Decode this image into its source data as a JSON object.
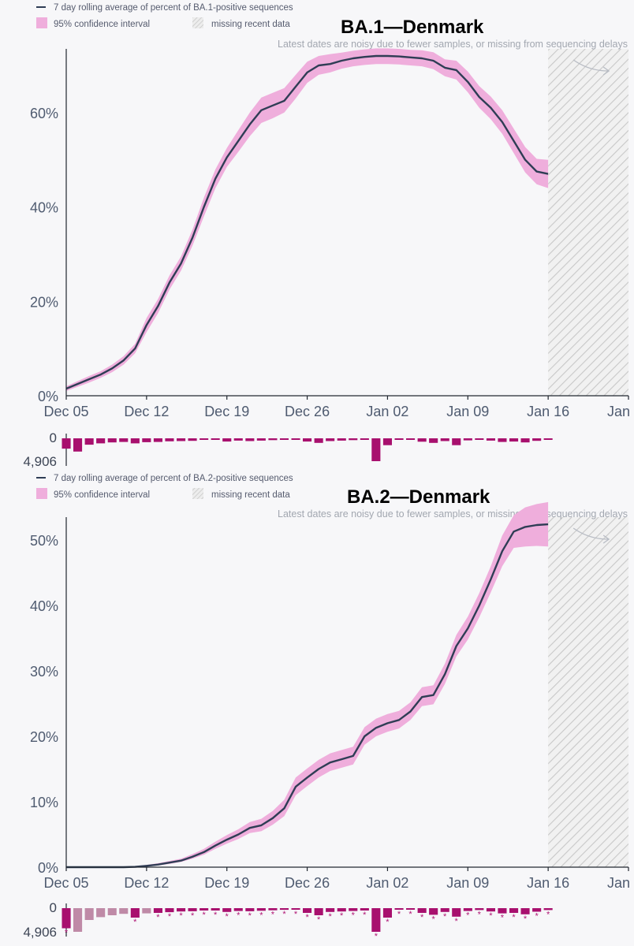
{
  "colors": {
    "line": "#2f3d55",
    "band": "#efaedc",
    "bar": "#a8106e",
    "bar_light": "#bf8aa7",
    "hatch": "#c8c8c8",
    "axis": "#222831",
    "text": "#4f5b70"
  },
  "chart_data": [
    {
      "type": "line",
      "title": "BA.1—Denmark",
      "legend": {
        "line_label": "7 day rolling average of percent of BA.1-positive sequences",
        "band_label": "95% confidence interval",
        "missing_label": "missing recent data",
        "placement": "top-left"
      },
      "note": "Latest dates are noisy due to fewer samples, or missing from sequencing delays",
      "x_ticks": [
        "Dec 05",
        "Dec 12",
        "Dec 19",
        "Dec 26",
        "Jan 02",
        "Jan 09",
        "Jan 16",
        "Jan"
      ],
      "x_range_days": [
        0,
        49
      ],
      "y_ticks": [
        "0%",
        "20%",
        "40%",
        "60%"
      ],
      "y_tick_values": [
        0,
        20,
        40,
        60
      ],
      "ylim": [
        0,
        73.5
      ],
      "missing_start_day": 42,
      "series": [
        {
          "name": "7 day rolling average of percent of BA.1-positive sequences",
          "x": [
            0,
            1,
            2,
            3,
            4,
            5,
            6,
            7,
            8,
            9,
            10,
            11,
            12,
            13,
            14,
            15,
            16,
            17,
            18,
            19,
            20,
            21,
            22,
            23,
            24,
            25,
            26,
            27,
            28,
            29,
            30,
            31,
            32,
            33,
            34,
            35,
            36,
            37,
            38,
            39,
            40,
            41,
            42
          ],
          "values": [
            1.5,
            2.5,
            3.5,
            4.5,
            5.8,
            7.5,
            10,
            15,
            19,
            24,
            28,
            33.5,
            40,
            46,
            50.5,
            54,
            57.5,
            60.5,
            61.5,
            62.5,
            65.5,
            68.5,
            70,
            70.3,
            71,
            71.5,
            71.8,
            72,
            72,
            71.9,
            71.7,
            71.5,
            71,
            69.5,
            69,
            66.5,
            63.3,
            61,
            58,
            54,
            50,
            47.5,
            47
          ],
          "ci_lower": [
            1.0,
            1.9,
            2.8,
            3.8,
            5.0,
            6.6,
            9,
            13.5,
            17.5,
            22.5,
            26.5,
            31.8,
            38,
            44,
            48.5,
            51.7,
            55,
            57.8,
            58.8,
            60,
            63,
            66.3,
            68,
            68.5,
            69.3,
            69.8,
            70.1,
            70.3,
            70.3,
            70.2,
            70,
            69.8,
            69.2,
            67.7,
            67,
            64.3,
            61,
            58.6,
            55.5,
            51.4,
            47.3,
            44.8,
            44
          ]
        }
      ],
      "ci_upper": [
        2.0,
        3.1,
        4.2,
        5.2,
        6.6,
        8.4,
        11,
        16.5,
        20.5,
        25.5,
        29.5,
        35.2,
        42,
        48,
        52.5,
        56.3,
        60,
        63.2,
        64.2,
        65.2,
        68,
        70.8,
        72,
        72.4,
        72.7,
        73.1,
        73.4,
        73.6,
        73.6,
        73.5,
        73.3,
        73.2,
        72.8,
        71.3,
        71,
        68.7,
        65.6,
        63.4,
        60.5,
        56.6,
        52.7,
        50.2,
        50
      ],
      "sample_counts": {
        "max_label": "4,906",
        "min_label": "0",
        "relative_values": [
          0.45,
          0.58,
          0.28,
          0.22,
          0.18,
          0.16,
          0.22,
          0.17,
          0.16,
          0.13,
          0.12,
          0.11,
          0.07,
          0.07,
          0.14,
          0.1,
          0.12,
          0.1,
          0.08,
          0.06,
          0.05,
          0.14,
          0.2,
          0.12,
          0.1,
          0.08,
          0.07,
          1.0,
          0.3,
          0.04,
          0.04,
          0.15,
          0.2,
          0.12,
          0.3,
          0.09,
          0.06,
          0.1,
          0.16,
          0.14,
          0.18,
          0.11,
          0.06
        ]
      }
    },
    {
      "type": "line",
      "title": "BA.2—Denmark",
      "legend": {
        "line_label": "7 day rolling average of percent of BA.2-positive sequences",
        "band_label": "95% confidence interval",
        "missing_label": "missing recent data",
        "placement": "top-left"
      },
      "note": "Latest dates are noisy due to fewer samples, or missing from sequencing delays",
      "x_ticks": [
        "Dec 05",
        "Dec 12",
        "Dec 19",
        "Dec 26",
        "Jan 02",
        "Jan 09",
        "Jan 16",
        "Jan"
      ],
      "x_range_days": [
        0,
        49
      ],
      "y_ticks": [
        "0%",
        "10%",
        "20%",
        "30%",
        "40%",
        "50%"
      ],
      "y_tick_values": [
        0,
        10,
        20,
        30,
        40,
        50
      ],
      "ylim": [
        0,
        53.5
      ],
      "missing_start_day": 42,
      "series": [
        {
          "name": "7 day rolling average of percent of BA.2-positive sequences",
          "x": [
            0,
            1,
            2,
            3,
            4,
            5,
            6,
            7,
            8,
            9,
            10,
            11,
            12,
            13,
            14,
            15,
            16,
            17,
            18,
            19,
            20,
            21,
            22,
            23,
            24,
            25,
            26,
            27,
            28,
            29,
            30,
            31,
            32,
            33,
            34,
            35,
            36,
            37,
            38,
            39,
            40,
            41,
            42
          ],
          "values": [
            0,
            0,
            0,
            0,
            0,
            0,
            0.05,
            0.2,
            0.4,
            0.7,
            1.0,
            1.6,
            2.3,
            3.3,
            4.2,
            5.0,
            6.0,
            6.4,
            7.5,
            9.0,
            12.3,
            13.7,
            15.0,
            16.0,
            16.5,
            17.0,
            20.0,
            21.3,
            22.0,
            22.5,
            23.8,
            26.0,
            26.3,
            29.5,
            33.8,
            36.5,
            40.0,
            44.0,
            48.3,
            51.3,
            52.0,
            52.3,
            52.4
          ],
          "ci_lower": [
            0,
            0,
            0,
            0,
            0,
            0,
            0,
            0.1,
            0.25,
            0.5,
            0.8,
            1.3,
            1.9,
            2.8,
            3.6,
            4.3,
            5.2,
            5.5,
            6.5,
            7.8,
            11.0,
            12.4,
            13.7,
            14.7,
            15.2,
            15.7,
            18.7,
            20.0,
            20.7,
            21.2,
            22.5,
            24.6,
            24.9,
            28.0,
            32.2,
            34.8,
            38.2,
            42.0,
            46.0,
            48.8,
            49.0,
            49.1,
            49.0
          ]
        }
      ],
      "ci_upper": [
        0.05,
        0.05,
        0.05,
        0.05,
        0.05,
        0.1,
        0.15,
        0.35,
        0.6,
        0.95,
        1.3,
        2.0,
        2.8,
        3.9,
        4.9,
        5.8,
        6.9,
        7.4,
        8.6,
        10.3,
        13.7,
        15.1,
        16.4,
        17.4,
        17.9,
        18.4,
        21.4,
        22.7,
        23.4,
        23.9,
        25.2,
        27.5,
        27.8,
        31.1,
        35.5,
        38.3,
        41.9,
        46.0,
        50.7,
        53.8,
        55.0,
        55.5,
        55.8
      ],
      "sample_counts": {
        "max_label": "4,906",
        "min_label": "0",
        "relative_values": [
          0.85,
          1.0,
          0.5,
          0.38,
          0.3,
          0.24,
          0.4,
          0.22,
          0.2,
          0.17,
          0.14,
          0.13,
          0.1,
          0.1,
          0.16,
          0.12,
          0.13,
          0.11,
          0.09,
          0.07,
          0.06,
          0.2,
          0.3,
          0.16,
          0.14,
          0.12,
          0.1,
          1.0,
          0.4,
          0.06,
          0.06,
          0.2,
          0.28,
          0.16,
          0.36,
          0.12,
          0.08,
          0.14,
          0.22,
          0.2,
          0.26,
          0.15,
          0.08
        ],
        "light_bars": [
          1,
          2,
          3,
          4,
          5,
          7
        ],
        "asterisk": "*"
      }
    }
  ]
}
